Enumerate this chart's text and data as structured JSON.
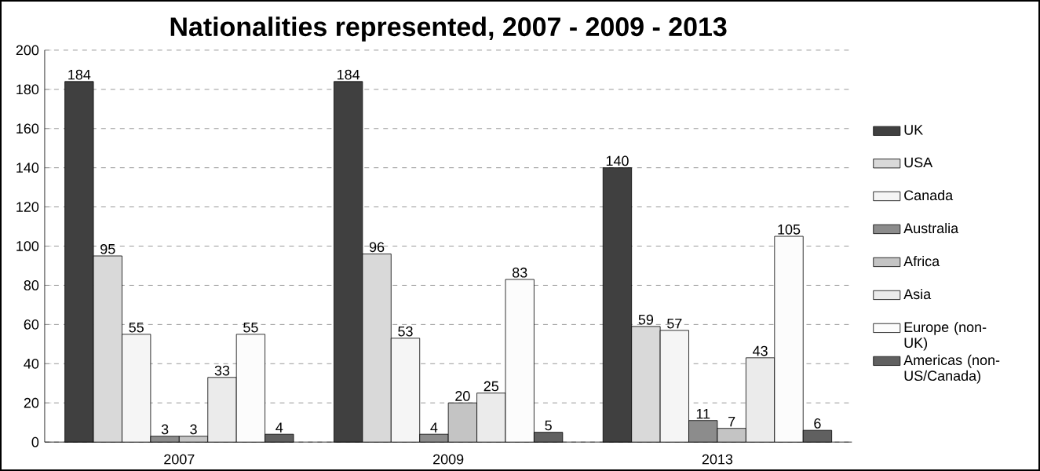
{
  "chart_data": {
    "type": "bar",
    "title": "Nationalities represented, 2007 - 2009 - 2013",
    "categories": [
      "2007",
      "2009",
      "2013"
    ],
    "series": [
      {
        "name": "UK",
        "color": "#404040",
        "values": [
          184,
          184,
          140
        ]
      },
      {
        "name": "USA",
        "color": "#d9d9d9",
        "values": [
          95,
          96,
          59
        ]
      },
      {
        "name": "Canada",
        "color": "#f5f5f5",
        "values": [
          55,
          53,
          57
        ]
      },
      {
        "name": "Australia",
        "color": "#8c8c8c",
        "values": [
          3,
          4,
          11
        ]
      },
      {
        "name": "Africa",
        "color": "#c4c4c4",
        "values": [
          3,
          20,
          7
        ]
      },
      {
        "name": "Asia",
        "color": "#ebebeb",
        "values": [
          33,
          25,
          43
        ]
      },
      {
        "name": "Europe (non-UK)",
        "color": "#fcfcfc",
        "values": [
          55,
          83,
          105
        ]
      },
      {
        "name": "Americas (non-US/Canada)",
        "color": "#606060",
        "values": [
          4,
          5,
          6
        ]
      }
    ],
    "ylim": [
      0,
      200
    ],
    "yticks": [
      0,
      20,
      40,
      60,
      80,
      100,
      120,
      140,
      160,
      180,
      200
    ],
    "grid": "y",
    "legend": "right",
    "data_labels": true
  }
}
